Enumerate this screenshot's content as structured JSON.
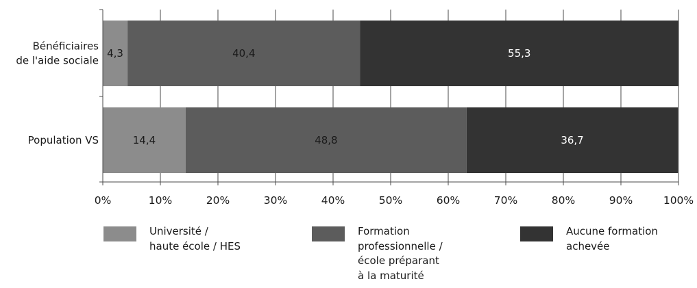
{
  "chart_data": {
    "type": "bar",
    "orientation": "horizontal",
    "stacked": true,
    "categories": [
      "Bénéficiaires\nde l'aide sociale",
      "Population VS"
    ],
    "series": [
      {
        "name": "Université /\nhaute école / HES",
        "values": [
          4.3,
          14.4
        ],
        "value_labels": [
          "4,3",
          "14,4"
        ],
        "color": "#8c8c8c",
        "label_color": "#1a1a1a"
      },
      {
        "name": "Formation\nprofessionnelle /\nécole préparant\nà la maturité",
        "values": [
          40.4,
          48.8
        ],
        "value_labels": [
          "40,4",
          "48,8"
        ],
        "color": "#5c5c5c",
        "label_color": "#1a1a1a"
      },
      {
        "name": "Aucune formation\nachevée",
        "values": [
          55.3,
          36.7
        ],
        "value_labels": [
          "55,3",
          "36,7"
        ],
        "color": "#333333",
        "label_color": "#ffffff"
      }
    ],
    "xlim": [
      0,
      100
    ],
    "xticks": [
      0,
      10,
      20,
      30,
      40,
      50,
      60,
      70,
      80,
      90,
      100
    ],
    "xtick_labels": [
      "0%",
      "10%",
      "20%",
      "30%",
      "40%",
      "50%",
      "60%",
      "70%",
      "80%",
      "90%",
      "100%"
    ],
    "grid": "vertical",
    "legend_position": "bottom",
    "title": "",
    "xlabel": "",
    "ylabel": ""
  }
}
